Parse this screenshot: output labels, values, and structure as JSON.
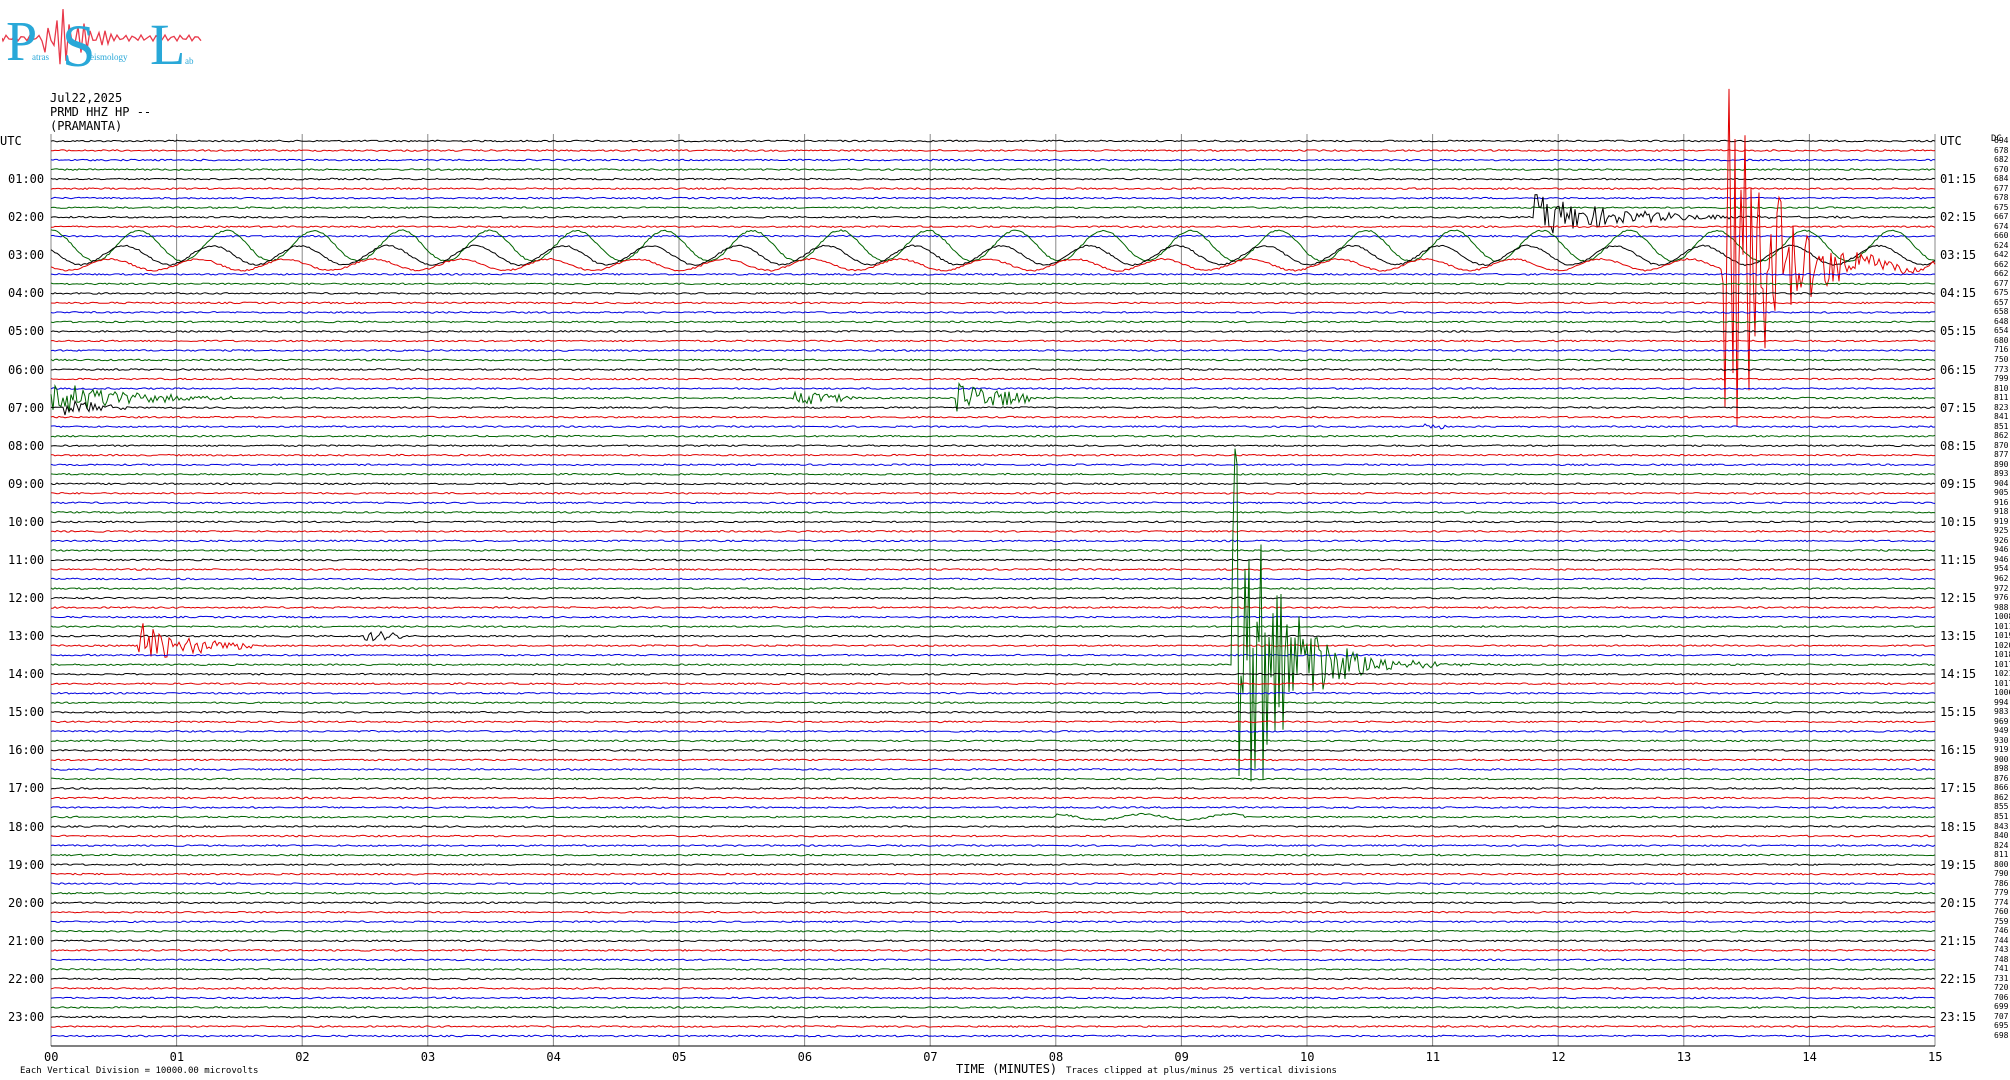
{
  "logo": {
    "initials": [
      "P",
      "S",
      "L"
    ],
    "words": [
      "atras",
      "eismology",
      "ab"
    ],
    "color": "#29a8d8",
    "trace_color": "#e8394a"
  },
  "header": {
    "date": "Jul22,2025",
    "station": "PRMD HHZ HP --",
    "place": "(PRAMANTA)"
  },
  "left_axis_title": "UTC",
  "right_axis_title": "UTC",
  "right_edge_label": "DC",
  "footer": {
    "scale_text": "Each Vertical Division = 10000.00 microvolts",
    "xlabel": "TIME (MINUTES)",
    "clip_text": "Traces clipped at plus/minus 25 vertical divisions"
  },
  "colors": {
    "grid": "#888888",
    "series": [
      "#000000",
      "#e00000",
      "#0000e0",
      "#006400"
    ]
  },
  "chart_data": {
    "type": "line",
    "title": "",
    "xlabel": "TIME (MINUTES)",
    "ylabel": "UTC",
    "xlim": [
      0,
      15
    ],
    "x_ticks": [
      "00",
      "01",
      "02",
      "03",
      "04",
      "05",
      "06",
      "07",
      "08",
      "09",
      "10",
      "11",
      "12",
      "13",
      "14",
      "15"
    ],
    "rows_per_hour": 4,
    "row_minutes": 15,
    "left_hour_labels": [
      "UTC",
      "01:00",
      "02:00",
      "03:00",
      "04:00",
      "05:00",
      "06:00",
      "07:00",
      "08:00",
      "09:00",
      "10:00",
      "11:00",
      "12:00",
      "13:00",
      "14:00",
      "15:00",
      "16:00",
      "17:00",
      "18:00",
      "19:00",
      "20:00",
      "21:00",
      "22:00",
      "23:00"
    ],
    "right_hour_labels": [
      "UTC",
      "01:15",
      "02:15",
      "03:15",
      "04:15",
      "05:15",
      "06:15",
      "07:15",
      "08:15",
      "09:15",
      "10:15",
      "11:15",
      "12:15",
      "13:15",
      "14:15",
      "15:15",
      "16:15",
      "17:15",
      "18:15",
      "19:15",
      "20:15",
      "21:15",
      "22:15",
      "23:15"
    ],
    "dc_offsets": [
      "694",
      "678",
      "682",
      "670",
      "684",
      "677",
      "678",
      "675",
      "667",
      "674",
      "660",
      "624",
      "642",
      "662",
      "662",
      "677",
      "675",
      "657",
      "658",
      "648",
      "654",
      "680",
      "716",
      "750",
      "773",
      "799",
      "810",
      "811",
      "823",
      "841",
      "851",
      "862",
      "870",
      "877",
      "890",
      "893",
      "904",
      "905",
      "916",
      "918",
      "919",
      "925",
      "926",
      "946",
      "946",
      "954",
      "962",
      "972",
      "976",
      "988",
      "1008",
      "1011",
      "1019",
      "1020",
      "1018",
      "1017",
      "1021",
      "1017",
      "1006",
      "994",
      "983",
      "969",
      "949",
      "930",
      "919",
      "900",
      "898",
      "876",
      "866",
      "862",
      "855",
      "851",
      "843",
      "840",
      "824",
      "811",
      "800",
      "790",
      "786",
      "779",
      "774",
      "760",
      "759",
      "746",
      "744",
      "743",
      "748",
      "741",
      "731",
      "720",
      "706",
      "699",
      "707",
      "695",
      "698"
    ],
    "events": [
      {
        "row": 8,
        "start_min": 11.8,
        "end_min": 15.0,
        "amp_div": 2.5,
        "decay": 0.6
      },
      {
        "row": 11,
        "start_min": 0.0,
        "end_min": 15.0,
        "amp_div": 1.6,
        "decay": 0.0
      },
      {
        "row": 12,
        "start_min": 0.0,
        "end_min": 15.0,
        "amp_div": 1.0,
        "decay": 0.0
      },
      {
        "row": 13,
        "start_min": 0.0,
        "end_min": 15.0,
        "amp_div": 0.6,
        "decay": 0.0
      },
      {
        "row": 13,
        "start_min": 13.3,
        "end_min": 15.0,
        "amp_div": 25,
        "decay": 0.35
      },
      {
        "row": 27,
        "start_min": 0.0,
        "end_min": 3.0,
        "amp_div": 2.2,
        "decay": 0.5
      },
      {
        "row": 27,
        "start_min": 5.9,
        "end_min": 6.4,
        "amp_div": 0.8,
        "decay": 0.5
      },
      {
        "row": 27,
        "start_min": 7.2,
        "end_min": 7.8,
        "amp_div": 1.8,
        "decay": 0.5
      },
      {
        "row": 28,
        "start_min": 0.1,
        "end_min": 0.6,
        "amp_div": 0.8,
        "decay": 0.5
      },
      {
        "row": 30,
        "start_min": 10.9,
        "end_min": 11.1,
        "amp_div": 0.4,
        "decay": 0.5
      },
      {
        "row": 53,
        "start_min": 0.7,
        "end_min": 1.6,
        "amp_div": 2.5,
        "decay": 0.4
      },
      {
        "row": 52,
        "start_min": 2.5,
        "end_min": 2.8,
        "amp_div": 0.6,
        "decay": 0.5
      },
      {
        "row": 71,
        "start_min": 8.0,
        "end_min": 9.5,
        "amp_div": 0.3,
        "decay": 0.0
      },
      {
        "row": 55,
        "start_min": 9.4,
        "end_min": 12.0,
        "amp_div": 25,
        "decay": 0.35
      }
    ]
  }
}
